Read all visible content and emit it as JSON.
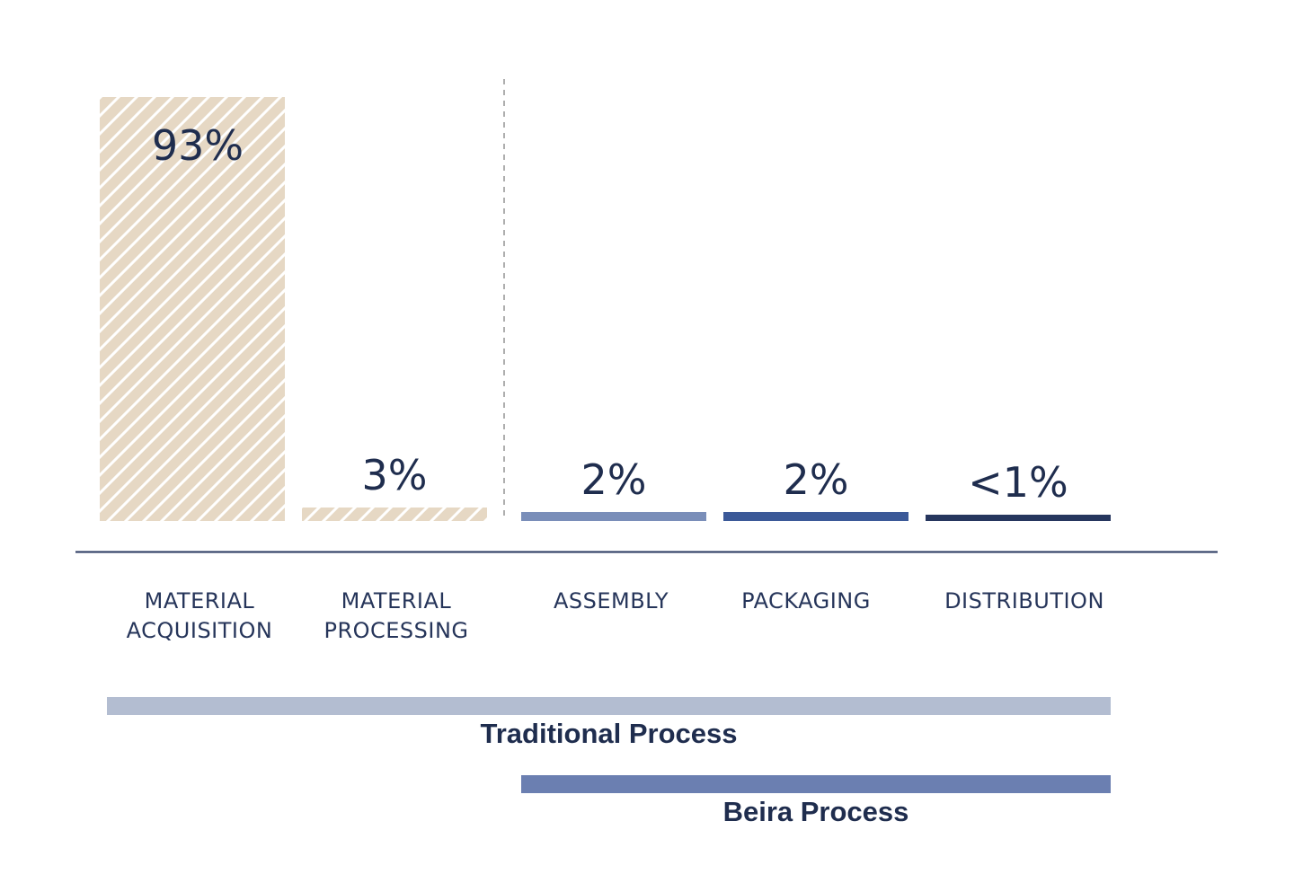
{
  "chart_data": {
    "type": "bar",
    "categories": [
      [
        "MATERIAL",
        "ACQUISITION"
      ],
      [
        "MATERIAL",
        "PROCESSING"
      ],
      [
        "ASSEMBLY"
      ],
      [
        "PACKAGING"
      ],
      [
        "DISTRIBUTION"
      ]
    ],
    "values": [
      93,
      3,
      2,
      2,
      0.5
    ],
    "value_labels": [
      "93%",
      "3%",
      "2%",
      "2%",
      "<1%"
    ],
    "bar_colors": [
      "#e6d8c4",
      "#e6d8c4",
      "#7a8eb9",
      "#3b5998",
      "#26365e"
    ],
    "bar_patterns": [
      "hatched",
      "hatched",
      "solid",
      "solid",
      "solid"
    ],
    "ylim": [
      0,
      93
    ],
    "grid": false,
    "divider": "dashed line between MATERIAL PROCESSING and ASSEMBLY",
    "process_bands": [
      {
        "label": "Traditional Process",
        "from": 0,
        "to": 4,
        "color": "#b3bdd1"
      },
      {
        "label": "Beira Process",
        "from": 2,
        "to": 4,
        "color": "#6b7fb1"
      }
    ]
  }
}
